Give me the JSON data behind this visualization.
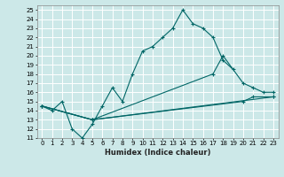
{
  "title": "",
  "xlabel": "Humidex (Indice chaleur)",
  "bg_color": "#cce8e8",
  "grid_color": "#ffffff",
  "line_color": "#006666",
  "xlim": [
    -0.5,
    23.5
  ],
  "ylim": [
    11,
    25.5
  ],
  "xticks": [
    0,
    1,
    2,
    3,
    4,
    5,
    6,
    7,
    8,
    9,
    10,
    11,
    12,
    13,
    14,
    15,
    16,
    17,
    18,
    19,
    20,
    21,
    22,
    23
  ],
  "yticks": [
    11,
    12,
    13,
    14,
    15,
    16,
    17,
    18,
    19,
    20,
    21,
    22,
    23,
    24,
    25
  ],
  "series1_x": [
    0,
    1,
    2,
    3,
    4,
    5,
    6,
    7,
    8,
    9,
    10,
    11,
    12,
    13,
    14,
    15,
    16,
    17,
    18,
    19
  ],
  "series1_y": [
    14.5,
    14.0,
    15.0,
    12.0,
    11.0,
    12.5,
    14.5,
    16.5,
    15.0,
    18.0,
    20.5,
    21.0,
    22.0,
    23.0,
    25.0,
    23.5,
    23.0,
    22.0,
    19.5,
    18.5
  ],
  "series2_x": [
    0,
    5,
    17,
    18,
    20,
    21,
    22,
    23
  ],
  "series2_y": [
    14.5,
    13.0,
    18.0,
    20.0,
    17.0,
    16.5,
    16.0,
    16.0
  ],
  "series3_x": [
    0,
    5,
    20,
    21,
    23
  ],
  "series3_y": [
    14.5,
    13.0,
    15.0,
    15.5,
    15.5
  ],
  "series4_x": [
    0,
    5,
    23
  ],
  "series4_y": [
    14.5,
    13.0,
    15.5
  ],
  "xlabel_fontsize": 6.0,
  "tick_fontsize": 5.0
}
